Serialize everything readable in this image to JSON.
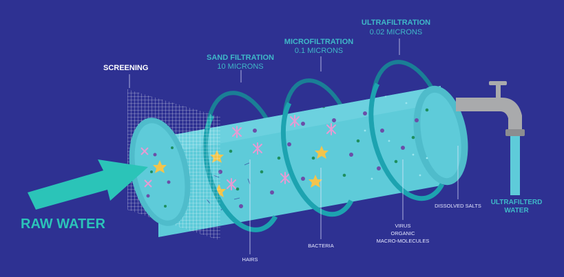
{
  "input": {
    "label": "RAW WATER"
  },
  "output": {
    "label_line1": "ULTRAFILTERD",
    "label_line2": "WATER"
  },
  "stages": [
    {
      "id": "screening",
      "title": "SCREENING",
      "subtitle": "",
      "removes": "HAIRS"
    },
    {
      "id": "sand",
      "title": "SAND FILTRATION",
      "subtitle": "10 MICRONS",
      "removes": ""
    },
    {
      "id": "micro",
      "title": "MICROFILTRATION",
      "subtitle": "0.1 MICRONS",
      "removes": "BACTERIA"
    },
    {
      "id": "ultra",
      "title": "ULTRAFILTRATION",
      "subtitle": "0.02 MICRONS",
      "removes_lines": [
        "VIRUS",
        "ORGANIC",
        "MACRO-MOLECULES"
      ]
    }
  ],
  "dissolved": {
    "label": "DISSOLVED SALTS"
  },
  "colors": {
    "background": "#2e3192",
    "tube": "#5ecbd9",
    "tube_light": "#8fe0ea",
    "ring": "#1da3b0",
    "arrow": "#2bc4b8",
    "stage_text": "#3fb8c8",
    "purple_dot": "#6b4ea8",
    "green_dot": "#1e8f5e",
    "pink_star": "#e59bd3",
    "yellow_star": "#f3c44b",
    "faucet": "#a9aaac",
    "water": "#5ecbd9"
  },
  "icons": [
    "faucet-icon",
    "arrow-icon",
    "screen-mesh-icon"
  ]
}
